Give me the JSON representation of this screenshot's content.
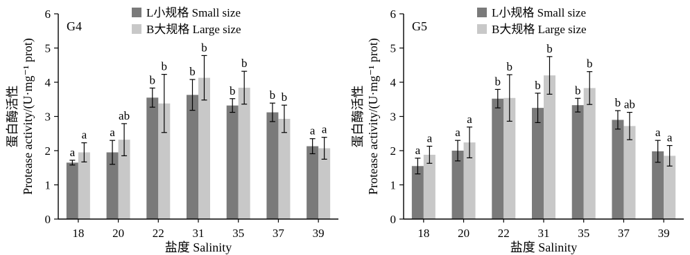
{
  "figure": {
    "legend": [
      {
        "key": "small",
        "label": "L小规格 Small size",
        "color": "#7a7a7a"
      },
      {
        "key": "large",
        "label": "B大规格 Large size",
        "color": "#c8c8c8"
      }
    ]
  },
  "chart_data": [
    {
      "type": "bar",
      "panel_label": "G4",
      "xlabel": "盐度 Salinity",
      "ylabel_cn": "蛋白酶活性",
      "ylabel_en": "Protease activity/(U·mg⁻¹ prot)",
      "ylim": [
        0,
        6
      ],
      "yticks": [
        "0",
        "1",
        "2",
        "3",
        "4",
        "5",
        "6"
      ],
      "categories": [
        "18",
        "20",
        "22",
        "31",
        "35",
        "37",
        "39"
      ],
      "series": [
        {
          "name": "L小规格 Small size",
          "key": "small",
          "values": [
            1.65,
            1.95,
            3.55,
            3.63,
            3.32,
            3.12,
            2.13
          ],
          "errors": [
            0.07,
            0.35,
            0.28,
            0.45,
            0.2,
            0.27,
            0.22
          ],
          "labels": [
            "a",
            "a",
            "b",
            "b",
            "b",
            "b",
            "a"
          ]
        },
        {
          "name": "B大规格 Large size",
          "key": "large",
          "values": [
            1.95,
            2.32,
            3.38,
            4.13,
            3.84,
            2.93,
            2.07
          ],
          "errors": [
            0.28,
            0.47,
            0.85,
            0.65,
            0.48,
            0.4,
            0.32
          ],
          "labels": [
            "a",
            "ab",
            "b",
            "b",
            "b",
            "b",
            "a"
          ]
        }
      ]
    },
    {
      "type": "bar",
      "panel_label": "G5",
      "xlabel": "盐度 Salinity",
      "ylabel_cn": "蛋白酶活性",
      "ylabel_en": "Protease activity/(U·mg⁻¹ prot)",
      "ylim": [
        0,
        6
      ],
      "yticks": [
        "0",
        "1",
        "2",
        "3",
        "4",
        "5",
        "6"
      ],
      "categories": [
        "18",
        "20",
        "22",
        "31",
        "35",
        "37",
        "39"
      ],
      "series": [
        {
          "name": "L小规格 Small size",
          "key": "small",
          "values": [
            1.55,
            2.0,
            3.52,
            3.25,
            3.33,
            2.9,
            1.98
          ],
          "errors": [
            0.23,
            0.3,
            0.27,
            0.43,
            0.2,
            0.27,
            0.32
          ],
          "labels": [
            "a",
            "a",
            "b",
            "b",
            "b",
            "b",
            "a"
          ]
        },
        {
          "name": "B大规格 Large size",
          "key": "large",
          "values": [
            1.88,
            2.24,
            3.54,
            4.2,
            3.83,
            2.72,
            1.85
          ],
          "errors": [
            0.25,
            0.45,
            0.68,
            0.55,
            0.48,
            0.4,
            0.3
          ],
          "labels": [
            "a",
            "a",
            "b",
            "b",
            "b",
            "ab",
            "a"
          ]
        }
      ]
    }
  ]
}
